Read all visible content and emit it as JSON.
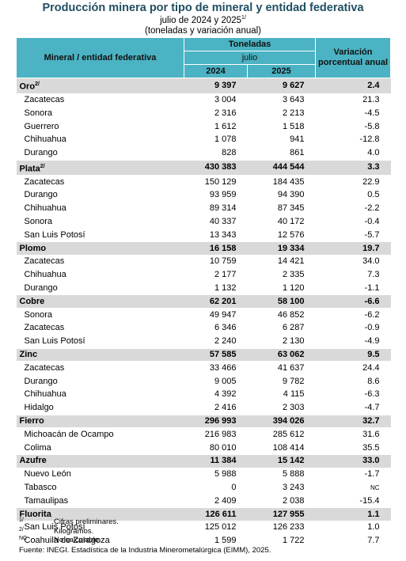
{
  "header": {
    "title": "Producción minera por tipo de mineral y entidad federativa",
    "subtitle": "julio de 2024 y 2025",
    "subtitle_note": "1/",
    "units": "(toneladas y variación anual)"
  },
  "table": {
    "columns": {
      "label": "Mineral / entidad federativa",
      "group": "Toneladas",
      "month": "julio",
      "year1": "2024",
      "year2": "2025",
      "change": "Variación porcentual anual"
    },
    "groups": [
      {
        "name": "Oro",
        "note": "2/",
        "values": [
          "9 397",
          "9 627",
          "2.4"
        ],
        "rows": [
          [
            "Zacatecas",
            "3 004",
            "3 643",
            "21.3"
          ],
          [
            "Sonora",
            "2 316",
            "2 213",
            "-4.5"
          ],
          [
            "Guerrero",
            "1 612",
            "1 518",
            "-5.8"
          ],
          [
            "Chihuahua",
            "1 078",
            "941",
            "-12.8"
          ],
          [
            "Durango",
            "828",
            "861",
            "4.0"
          ]
        ]
      },
      {
        "name": "Plata",
        "note": "2/",
        "values": [
          "430 383",
          "444 544",
          "3.3"
        ],
        "rows": [
          [
            "Zacatecas",
            "150 129",
            "184 435",
            "22.9"
          ],
          [
            "Durango",
            "93 959",
            "94 390",
            "0.5"
          ],
          [
            "Chihuahua",
            "89 314",
            "87 345",
            "-2.2"
          ],
          [
            "Sonora",
            "40 337",
            "40 172",
            "-0.4"
          ],
          [
            "San Luis Potosí",
            "13 343",
            "12 576",
            "-5.7"
          ]
        ]
      },
      {
        "name": "Plomo",
        "values": [
          "16 158",
          "19 334",
          "19.7"
        ],
        "rows": [
          [
            "Zacatecas",
            "10 759",
            "14 421",
            "34.0"
          ],
          [
            "Chihuahua",
            "2 177",
            "2 335",
            "7.3"
          ],
          [
            "Durango",
            "1 132",
            "1 120",
            "-1.1"
          ]
        ]
      },
      {
        "name": "Cobre",
        "values": [
          "62 201",
          "58 100",
          "-6.6"
        ],
        "rows": [
          [
            "Sonora",
            "49 947",
            "46 852",
            "-6.2"
          ],
          [
            "Zacatecas",
            "6 346",
            "6 287",
            "-0.9"
          ],
          [
            "San Luis Potosí",
            "2 240",
            "2 130",
            "-4.9"
          ]
        ]
      },
      {
        "name": "Zinc",
        "values": [
          "57 585",
          "63 062",
          "9.5"
        ],
        "rows": [
          [
            "Zacatecas",
            "33 466",
            "41 637",
            "24.4"
          ],
          [
            "Durango",
            "9 005",
            "9 782",
            "8.6"
          ],
          [
            "Chihuahua",
            "4 392",
            "4 115",
            "-6.3"
          ],
          [
            "Hidalgo",
            "2 416",
            "2 303",
            "-4.7"
          ]
        ]
      },
      {
        "name": "Fierro",
        "values": [
          "296 993",
          "394 026",
          "32.7"
        ],
        "rows": [
          [
            "Michoacán de Ocampo",
            "216 983",
            "285 612",
            "31.6"
          ],
          [
            "Colima",
            "80 010",
            "108 414",
            "35.5"
          ]
        ]
      },
      {
        "name": "Azufre",
        "values": [
          "11 384",
          "15 142",
          "33.0"
        ],
        "rows": [
          [
            "Nuevo León",
            "5 988",
            "5 888",
            "-1.7"
          ],
          [
            "Tabasco",
            "0",
            "3 243",
            "NC"
          ],
          [
            "Tamaulipas",
            "2 409",
            "2 038",
            "-15.4"
          ]
        ]
      },
      {
        "name": "Fluorita",
        "values": [
          "126 611",
          "127 955",
          "1.1"
        ],
        "rows": [
          [
            "San Luis Potosí",
            "125 012",
            "126 233",
            "1.0"
          ],
          [
            "Coahuila de Zaragoza",
            "1 599",
            "1 722",
            "7.7"
          ]
        ]
      }
    ]
  },
  "notes": [
    {
      "mark": "1/",
      "text": "Cifras preliminares."
    },
    {
      "mark": "2/",
      "text": "Kilogramos."
    },
    {
      "mark": "NC",
      "text": "No calculable."
    }
  ],
  "source": {
    "label": "Fuente:",
    "text": "INEGI. Estadística de la Industria Minerometalúrgica (EIMM), 2025."
  }
}
